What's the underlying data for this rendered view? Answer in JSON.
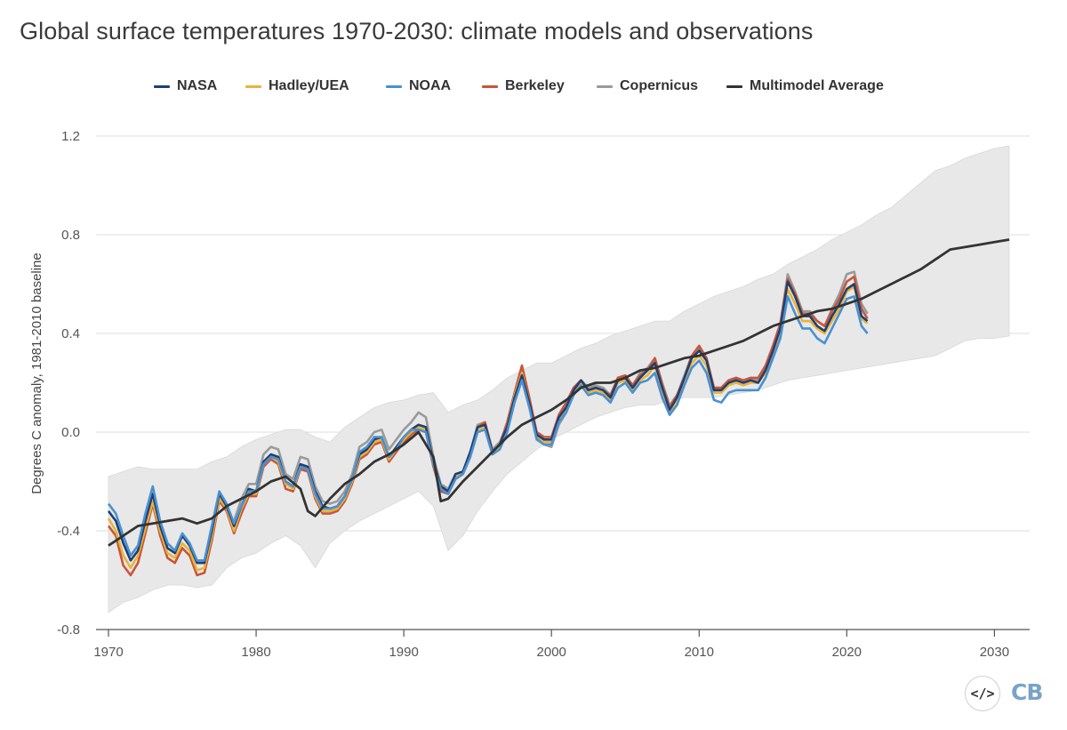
{
  "title": "Global surface temperatures 1970-2030: climate models and observations",
  "brand": {
    "logo_text": "CB",
    "embed_symbol": "</>",
    "embed_icon": "code-embed-icon",
    "logo_color": "#7aa3c7"
  },
  "chart_data": {
    "type": "line",
    "title": "Global surface temperatures 1970-2030: climate models and observations",
    "xlabel": "",
    "ylabel": "Degrees C anomaly, 1981-2010 baseline",
    "xlim": [
      1970,
      2031.3
    ],
    "ylim": [
      -0.8,
      1.2
    ],
    "xticks": [
      1970,
      1980,
      1990,
      2000,
      2010,
      2020,
      2030
    ],
    "yticks": [
      -0.8,
      -0.4,
      0.0,
      0.4,
      0.8,
      1.2
    ],
    "ytick_labels": [
      "-0.8",
      "-0.4",
      "0.0",
      "0.4",
      "0.8",
      "1.2"
    ],
    "grid": "horizontal",
    "legend_position": "top-center",
    "observations": {
      "x": [
        1970.0,
        1970.5,
        1971.0,
        1971.5,
        1972.0,
        1972.5,
        1973.0,
        1973.5,
        1974.0,
        1974.5,
        1975.0,
        1975.5,
        1976.0,
        1976.5,
        1977.0,
        1977.5,
        1978.0,
        1978.5,
        1979.0,
        1979.5,
        1980.0,
        1980.5,
        1981.0,
        1981.5,
        1982.0,
        1982.5,
        1983.0,
        1983.5,
        1984.0,
        1984.5,
        1985.0,
        1985.5,
        1986.0,
        1986.5,
        1987.0,
        1987.5,
        1988.0,
        1988.5,
        1989.0,
        1989.5,
        1990.0,
        1990.5,
        1991.0,
        1991.5,
        1992.0,
        1992.5,
        1993.0,
        1993.5,
        1994.0,
        1994.5,
        1995.0,
        1995.5,
        1996.0,
        1996.5,
        1997.0,
        1997.5,
        1998.0,
        1998.5,
        1999.0,
        1999.5,
        2000.0,
        2000.5,
        2001.0,
        2001.5,
        2002.0,
        2002.5,
        2003.0,
        2003.5,
        2004.0,
        2004.5,
        2005.0,
        2005.5,
        2006.0,
        2006.5,
        2007.0,
        2007.5,
        2008.0,
        2008.5,
        2009.0,
        2009.5,
        2010.0,
        2010.5,
        2011.0,
        2011.5,
        2012.0,
        2012.5,
        2013.0,
        2013.5,
        2014.0,
        2014.5,
        2015.0,
        2015.5,
        2016.0,
        2016.5,
        2017.0,
        2017.5,
        2018.0,
        2018.5,
        2019.0,
        2019.5,
        2020.0,
        2020.5,
        2021.0,
        2021.4
      ],
      "series": [
        {
          "name": "NASA",
          "color": "#1f3f73",
          "values": [
            -0.32,
            -0.36,
            -0.45,
            -0.52,
            -0.48,
            -0.36,
            -0.25,
            -0.38,
            -0.47,
            -0.49,
            -0.42,
            -0.46,
            -0.53,
            -0.53,
            -0.4,
            -0.25,
            -0.3,
            -0.38,
            -0.3,
            -0.23,
            -0.24,
            -0.12,
            -0.09,
            -0.1,
            -0.2,
            -0.22,
            -0.13,
            -0.14,
            -0.24,
            -0.3,
            -0.31,
            -0.3,
            -0.26,
            -0.19,
            -0.09,
            -0.07,
            -0.03,
            -0.02,
            -0.1,
            -0.06,
            -0.02,
            0.01,
            0.03,
            0.02,
            -0.12,
            -0.22,
            -0.24,
            -0.17,
            -0.16,
            -0.08,
            0.02,
            0.03,
            -0.08,
            -0.05,
            0.02,
            0.14,
            0.23,
            0.12,
            -0.01,
            -0.03,
            -0.03,
            0.06,
            0.1,
            0.17,
            0.21,
            0.17,
            0.18,
            0.17,
            0.14,
            0.21,
            0.22,
            0.18,
            0.22,
            0.25,
            0.28,
            0.18,
            0.09,
            0.14,
            0.22,
            0.3,
            0.33,
            0.29,
            0.17,
            0.17,
            0.2,
            0.21,
            0.2,
            0.21,
            0.2,
            0.25,
            0.33,
            0.42,
            0.61,
            0.55,
            0.47,
            0.47,
            0.43,
            0.41,
            0.47,
            0.52,
            0.58,
            0.6,
            0.47,
            0.45
          ]
        },
        {
          "name": "Hadley/UEA",
          "color": "#e8b43a",
          "values": [
            -0.35,
            -0.4,
            -0.5,
            -0.55,
            -0.5,
            -0.39,
            -0.28,
            -0.4,
            -0.49,
            -0.51,
            -0.45,
            -0.48,
            -0.56,
            -0.55,
            -0.42,
            -0.27,
            -0.31,
            -0.4,
            -0.31,
            -0.25,
            -0.25,
            -0.13,
            -0.1,
            -0.12,
            -0.21,
            -0.23,
            -0.14,
            -0.15,
            -0.26,
            -0.32,
            -0.32,
            -0.31,
            -0.27,
            -0.2,
            -0.1,
            -0.08,
            -0.04,
            -0.03,
            -0.11,
            -0.07,
            -0.03,
            0.0,
            0.02,
            0.01,
            -0.13,
            -0.23,
            -0.24,
            -0.18,
            -0.17,
            -0.09,
            0.01,
            0.02,
            -0.09,
            -0.06,
            0.02,
            0.15,
            0.24,
            0.12,
            -0.01,
            -0.04,
            -0.04,
            0.05,
            0.1,
            0.17,
            0.2,
            0.16,
            0.17,
            0.16,
            0.13,
            0.2,
            0.21,
            0.17,
            0.21,
            0.23,
            0.27,
            0.16,
            0.08,
            0.13,
            0.2,
            0.28,
            0.31,
            0.27,
            0.16,
            0.16,
            0.19,
            0.2,
            0.19,
            0.2,
            0.2,
            0.24,
            0.31,
            0.4,
            0.58,
            0.52,
            0.45,
            0.45,
            0.42,
            0.4,
            0.45,
            0.5,
            0.57,
            0.59,
            0.46,
            0.44
          ]
        },
        {
          "name": "NOAA",
          "color": "#4a90d0",
          "values": [
            -0.29,
            -0.33,
            -0.42,
            -0.5,
            -0.46,
            -0.33,
            -0.22,
            -0.36,
            -0.45,
            -0.48,
            -0.41,
            -0.45,
            -0.52,
            -0.52,
            -0.38,
            -0.24,
            -0.29,
            -0.37,
            -0.3,
            -0.24,
            -0.24,
            -0.13,
            -0.1,
            -0.11,
            -0.2,
            -0.22,
            -0.14,
            -0.15,
            -0.25,
            -0.31,
            -0.31,
            -0.3,
            -0.26,
            -0.19,
            -0.08,
            -0.06,
            -0.02,
            -0.02,
            -0.1,
            -0.07,
            -0.02,
            0.01,
            0.01,
            0.0,
            -0.13,
            -0.23,
            -0.25,
            -0.19,
            -0.17,
            -0.1,
            0.0,
            0.01,
            -0.09,
            -0.07,
            0.0,
            0.12,
            0.21,
            0.1,
            -0.03,
            -0.05,
            -0.05,
            0.04,
            0.08,
            0.15,
            0.19,
            0.15,
            0.16,
            0.15,
            0.12,
            0.18,
            0.2,
            0.16,
            0.2,
            0.21,
            0.24,
            0.14,
            0.07,
            0.11,
            0.19,
            0.26,
            0.29,
            0.24,
            0.13,
            0.12,
            0.16,
            0.17,
            0.17,
            0.17,
            0.17,
            0.22,
            0.3,
            0.38,
            0.55,
            0.48,
            0.42,
            0.42,
            0.38,
            0.36,
            0.42,
            0.48,
            0.54,
            0.55,
            0.43,
            0.4
          ]
        },
        {
          "name": "Berkeley",
          "color": "#c8553a",
          "values": [
            -0.38,
            -0.42,
            -0.54,
            -0.58,
            -0.53,
            -0.41,
            -0.29,
            -0.42,
            -0.51,
            -0.53,
            -0.47,
            -0.5,
            -0.58,
            -0.57,
            -0.44,
            -0.28,
            -0.32,
            -0.41,
            -0.33,
            -0.26,
            -0.26,
            -0.14,
            -0.11,
            -0.13,
            -0.23,
            -0.24,
            -0.15,
            -0.16,
            -0.27,
            -0.33,
            -0.33,
            -0.32,
            -0.28,
            -0.21,
            -0.11,
            -0.09,
            -0.05,
            -0.04,
            -0.12,
            -0.08,
            -0.04,
            -0.01,
            0.01,
            0.0,
            -0.14,
            -0.24,
            -0.25,
            -0.19,
            -0.17,
            -0.1,
            0.02,
            0.04,
            -0.08,
            -0.05,
            0.04,
            0.16,
            0.27,
            0.14,
            0.0,
            -0.02,
            -0.02,
            0.07,
            0.12,
            0.18,
            0.21,
            0.17,
            0.18,
            0.17,
            0.15,
            0.22,
            0.23,
            0.19,
            0.23,
            0.25,
            0.3,
            0.19,
            0.1,
            0.15,
            0.22,
            0.31,
            0.35,
            0.3,
            0.18,
            0.18,
            0.21,
            0.22,
            0.21,
            0.22,
            0.22,
            0.27,
            0.35,
            0.44,
            0.62,
            0.56,
            0.48,
            0.48,
            0.45,
            0.43,
            0.49,
            0.54,
            0.61,
            0.63,
            0.5,
            0.46
          ]
        },
        {
          "name": "Copernicus",
          "color": "#9a9a9a",
          "values": [
            null,
            null,
            null,
            null,
            null,
            null,
            null,
            null,
            null,
            null,
            null,
            null,
            null,
            null,
            null,
            null,
            null,
            -0.36,
            -0.27,
            -0.21,
            -0.21,
            -0.09,
            -0.06,
            -0.07,
            -0.17,
            -0.19,
            -0.1,
            -0.11,
            -0.22,
            -0.28,
            -0.29,
            -0.28,
            -0.24,
            -0.17,
            -0.06,
            -0.04,
            0.0,
            0.01,
            -0.07,
            -0.03,
            0.01,
            0.04,
            0.08,
            0.06,
            -0.1,
            -0.21,
            -0.23,
            -0.17,
            -0.16,
            -0.08,
            0.03,
            0.04,
            -0.07,
            -0.04,
            0.03,
            0.15,
            0.25,
            0.13,
            -0.02,
            -0.05,
            -0.06,
            0.03,
            0.08,
            0.16,
            0.21,
            0.18,
            0.19,
            0.18,
            0.15,
            0.22,
            0.23,
            0.19,
            0.24,
            0.26,
            0.3,
            0.2,
            0.11,
            0.15,
            0.23,
            0.31,
            0.34,
            0.3,
            0.18,
            0.17,
            0.21,
            0.22,
            0.21,
            0.22,
            0.21,
            0.26,
            0.35,
            0.44,
            0.64,
            0.57,
            0.49,
            0.49,
            0.45,
            0.43,
            0.5,
            0.56,
            0.64,
            0.65,
            0.52,
            0.48
          ]
        }
      ]
    },
    "model": {
      "x": [
        1970,
        1971,
        1972,
        1973,
        1974,
        1975,
        1976,
        1977,
        1978,
        1979,
        1980,
        1981,
        1982,
        1983,
        1983.5,
        1984,
        1985,
        1986,
        1987,
        1988,
        1989,
        1990,
        1991,
        1992,
        1992.5,
        1993,
        1994,
        1995,
        1996,
        1997,
        1998,
        1999,
        2000,
        2001,
        2002,
        2003,
        2004,
        2005,
        2006,
        2007,
        2008,
        2009,
        2010,
        2011,
        2012,
        2013,
        2014,
        2015,
        2016,
        2017,
        2018,
        2019,
        2020,
        2021,
        2022,
        2023,
        2024,
        2025,
        2026,
        2027,
        2028,
        2029,
        2030,
        2031
      ],
      "series": [
        {
          "name": "Multimodel Average",
          "color": "#333333",
          "values": [
            -0.46,
            -0.42,
            -0.38,
            -0.37,
            -0.36,
            -0.35,
            -0.37,
            -0.35,
            -0.3,
            -0.27,
            -0.24,
            -0.2,
            -0.18,
            -0.23,
            -0.32,
            -0.34,
            -0.27,
            -0.21,
            -0.17,
            -0.12,
            -0.09,
            -0.05,
            0.0,
            -0.1,
            -0.28,
            -0.27,
            -0.2,
            -0.14,
            -0.08,
            -0.02,
            0.03,
            0.06,
            0.09,
            0.13,
            0.18,
            0.2,
            0.2,
            0.22,
            0.25,
            0.26,
            0.28,
            0.3,
            0.31,
            0.33,
            0.35,
            0.37,
            0.4,
            0.43,
            0.45,
            0.47,
            0.49,
            0.5,
            0.52,
            0.54,
            0.57,
            0.6,
            0.63,
            0.66,
            0.7,
            0.74,
            0.75,
            0.76,
            0.77,
            0.78
          ]
        }
      ],
      "range_x": [
        1970,
        1971,
        1972,
        1973,
        1974,
        1975,
        1976,
        1977,
        1978,
        1979,
        1980,
        1981,
        1982,
        1983,
        1984,
        1985,
        1986,
        1987,
        1988,
        1989,
        1990,
        1991,
        1992,
        1993,
        1994,
        1995,
        1996,
        1997,
        1998,
        1999,
        2000,
        2001,
        2002,
        2003,
        2004,
        2005,
        2006,
        2007,
        2008,
        2009,
        2010,
        2011,
        2012,
        2013,
        2014,
        2015,
        2016,
        2017,
        2018,
        2019,
        2020,
        2021,
        2022,
        2023,
        2024,
        2025,
        2026,
        2027,
        2028,
        2029,
        2030,
        2031
      ],
      "range_upper": [
        -0.18,
        -0.16,
        -0.14,
        -0.15,
        -0.15,
        -0.15,
        -0.15,
        -0.12,
        -0.1,
        -0.06,
        -0.03,
        -0.01,
        0.01,
        0.01,
        -0.02,
        -0.04,
        0.02,
        0.06,
        0.1,
        0.12,
        0.13,
        0.15,
        0.16,
        0.08,
        0.11,
        0.13,
        0.17,
        0.22,
        0.25,
        0.28,
        0.28,
        0.31,
        0.34,
        0.36,
        0.39,
        0.41,
        0.43,
        0.45,
        0.45,
        0.49,
        0.52,
        0.55,
        0.57,
        0.59,
        0.62,
        0.64,
        0.68,
        0.71,
        0.74,
        0.78,
        0.81,
        0.84,
        0.88,
        0.91,
        0.96,
        1.01,
        1.06,
        1.08,
        1.11,
        1.13,
        1.15,
        1.16
      ],
      "range_lower": [
        -0.73,
        -0.69,
        -0.67,
        -0.64,
        -0.62,
        -0.62,
        -0.63,
        -0.62,
        -0.55,
        -0.51,
        -0.49,
        -0.45,
        -0.42,
        -0.46,
        -0.55,
        -0.45,
        -0.4,
        -0.36,
        -0.33,
        -0.3,
        -0.27,
        -0.24,
        -0.3,
        -0.48,
        -0.42,
        -0.32,
        -0.24,
        -0.17,
        -0.12,
        -0.07,
        -0.03,
        0.0,
        0.03,
        0.06,
        0.08,
        0.1,
        0.11,
        0.11,
        0.13,
        0.14,
        0.14,
        0.14,
        0.15,
        0.16,
        0.17,
        0.19,
        0.21,
        0.22,
        0.23,
        0.24,
        0.25,
        0.26,
        0.27,
        0.28,
        0.29,
        0.3,
        0.31,
        0.34,
        0.37,
        0.38,
        0.38,
        0.39
      ],
      "range_color": "#e8e8e8"
    }
  }
}
